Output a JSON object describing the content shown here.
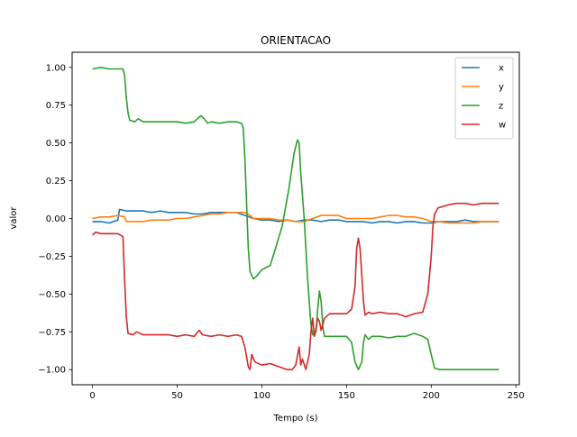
{
  "chart_data": {
    "type": "line",
    "title": "ORIENTACAO",
    "xlabel": "Tempo (s)",
    "ylabel": "valor",
    "xlim": [
      -12,
      252
    ],
    "ylim": [
      -1.1,
      1.1
    ],
    "xticks": [
      0,
      50,
      100,
      150,
      200,
      250
    ],
    "yticks": [
      -1.0,
      -0.75,
      -0.5,
      -0.25,
      0.0,
      0.25,
      0.5,
      0.75,
      1.0
    ],
    "xtick_labels": [
      "0",
      "50",
      "100",
      "150",
      "200",
      "250"
    ],
    "ytick_labels": [
      "−1.00",
      "−0.75",
      "−0.50",
      "−0.25",
      "0.00",
      "0.25",
      "0.50",
      "0.75",
      "1.00"
    ],
    "grid": false,
    "legend_position": "top-right",
    "series": [
      {
        "name": "x",
        "color": "#1f77b4",
        "points": [
          [
            0,
            -0.02
          ],
          [
            5,
            -0.02
          ],
          [
            10,
            -0.03
          ],
          [
            15,
            -0.01
          ],
          [
            16,
            0.06
          ],
          [
            20,
            0.05
          ],
          [
            25,
            0.05
          ],
          [
            30,
            0.05
          ],
          [
            35,
            0.04
          ],
          [
            40,
            0.05
          ],
          [
            45,
            0.04
          ],
          [
            50,
            0.04
          ],
          [
            55,
            0.04
          ],
          [
            60,
            0.03
          ],
          [
            65,
            0.03
          ],
          [
            70,
            0.04
          ],
          [
            75,
            0.04
          ],
          [
            80,
            0.04
          ],
          [
            85,
            0.04
          ],
          [
            90,
            0.02
          ],
          [
            95,
            0.0
          ],
          [
            100,
            -0.01
          ],
          [
            105,
            -0.01
          ],
          [
            110,
            -0.02
          ],
          [
            115,
            -0.01
          ],
          [
            120,
            -0.02
          ],
          [
            125,
            -0.01
          ],
          [
            130,
            -0.01
          ],
          [
            135,
            -0.02
          ],
          [
            140,
            -0.01
          ],
          [
            145,
            -0.01
          ],
          [
            150,
            -0.02
          ],
          [
            155,
            -0.02
          ],
          [
            160,
            -0.02
          ],
          [
            165,
            -0.03
          ],
          [
            170,
            -0.02
          ],
          [
            175,
            -0.02
          ],
          [
            180,
            -0.03
          ],
          [
            185,
            -0.02
          ],
          [
            190,
            -0.02
          ],
          [
            195,
            -0.03
          ],
          [
            200,
            -0.03
          ],
          [
            205,
            -0.02
          ],
          [
            210,
            -0.02
          ],
          [
            215,
            -0.02
          ],
          [
            220,
            -0.01
          ],
          [
            225,
            -0.02
          ],
          [
            230,
            -0.02
          ],
          [
            235,
            -0.02
          ],
          [
            240,
            -0.02
          ]
        ]
      },
      {
        "name": "y",
        "color": "#ff7f0e",
        "points": [
          [
            0,
            0.0
          ],
          [
            5,
            0.01
          ],
          [
            10,
            0.01
          ],
          [
            15,
            0.02
          ],
          [
            19,
            0.01
          ],
          [
            20,
            -0.02
          ],
          [
            25,
            -0.02
          ],
          [
            30,
            -0.02
          ],
          [
            35,
            -0.01
          ],
          [
            40,
            -0.01
          ],
          [
            45,
            -0.01
          ],
          [
            50,
            0.0
          ],
          [
            55,
            0.0
          ],
          [
            60,
            0.01
          ],
          [
            65,
            0.02
          ],
          [
            70,
            0.03
          ],
          [
            75,
            0.03
          ],
          [
            80,
            0.04
          ],
          [
            85,
            0.04
          ],
          [
            90,
            0.04
          ],
          [
            93,
            0.02
          ],
          [
            95,
            0.0
          ],
          [
            100,
            0.0
          ],
          [
            105,
            0.0
          ],
          [
            110,
            -0.01
          ],
          [
            115,
            -0.01
          ],
          [
            120,
            -0.02
          ],
          [
            125,
            -0.02
          ],
          [
            130,
            0.0
          ],
          [
            135,
            0.02
          ],
          [
            140,
            0.02
          ],
          [
            145,
            0.02
          ],
          [
            150,
            0.0
          ],
          [
            155,
            0.0
          ],
          [
            160,
            0.0
          ],
          [
            165,
            0.0
          ],
          [
            170,
            0.01
          ],
          [
            175,
            0.02
          ],
          [
            180,
            0.02
          ],
          [
            185,
            0.01
          ],
          [
            190,
            0.01
          ],
          [
            195,
            0.0
          ],
          [
            200,
            -0.02
          ],
          [
            205,
            -0.02
          ],
          [
            210,
            -0.03
          ],
          [
            215,
            -0.03
          ],
          [
            220,
            -0.03
          ],
          [
            225,
            -0.03
          ],
          [
            230,
            -0.02
          ],
          [
            235,
            -0.02
          ],
          [
            240,
            -0.02
          ]
        ]
      },
      {
        "name": "z",
        "color": "#2ca02c",
        "points": [
          [
            0,
            0.99
          ],
          [
            5,
            1.0
          ],
          [
            10,
            0.99
          ],
          [
            15,
            0.99
          ],
          [
            18,
            0.99
          ],
          [
            19,
            0.95
          ],
          [
            20,
            0.8
          ],
          [
            21,
            0.7
          ],
          [
            22,
            0.65
          ],
          [
            25,
            0.64
          ],
          [
            27,
            0.66
          ],
          [
            30,
            0.64
          ],
          [
            35,
            0.64
          ],
          [
            40,
            0.64
          ],
          [
            45,
            0.64
          ],
          [
            50,
            0.64
          ],
          [
            55,
            0.63
          ],
          [
            60,
            0.64
          ],
          [
            64,
            0.68
          ],
          [
            66,
            0.66
          ],
          [
            68,
            0.63
          ],
          [
            70,
            0.64
          ],
          [
            75,
            0.63
          ],
          [
            80,
            0.64
          ],
          [
            85,
            0.64
          ],
          [
            88,
            0.63
          ],
          [
            89,
            0.6
          ],
          [
            90,
            0.4
          ],
          [
            91,
            0.1
          ],
          [
            92,
            -0.2
          ],
          [
            93,
            -0.35
          ],
          [
            95,
            -0.4
          ],
          [
            97,
            -0.38
          ],
          [
            100,
            -0.34
          ],
          [
            105,
            -0.31
          ],
          [
            108,
            -0.2
          ],
          [
            112,
            -0.05
          ],
          [
            116,
            0.2
          ],
          [
            119,
            0.43
          ],
          [
            121,
            0.52
          ],
          [
            122,
            0.5
          ],
          [
            123,
            0.3
          ],
          [
            125,
            0.0
          ],
          [
            127,
            -0.4
          ],
          [
            129,
            -0.7
          ],
          [
            130,
            -0.77
          ],
          [
            132,
            -0.75
          ],
          [
            133,
            -0.6
          ],
          [
            134,
            -0.48
          ],
          [
            135,
            -0.55
          ],
          [
            136,
            -0.72
          ],
          [
            137,
            -0.78
          ],
          [
            140,
            -0.78
          ],
          [
            145,
            -0.78
          ],
          [
            150,
            -0.78
          ],
          [
            153,
            -0.82
          ],
          [
            155,
            -0.95
          ],
          [
            157,
            -1.0
          ],
          [
            159,
            -0.95
          ],
          [
            160,
            -0.82
          ],
          [
            161,
            -0.77
          ],
          [
            163,
            -0.8
          ],
          [
            165,
            -0.78
          ],
          [
            170,
            -0.78
          ],
          [
            175,
            -0.79
          ],
          [
            180,
            -0.78
          ],
          [
            185,
            -0.78
          ],
          [
            190,
            -0.76
          ],
          [
            195,
            -0.78
          ],
          [
            198,
            -0.8
          ],
          [
            200,
            -0.9
          ],
          [
            202,
            -0.99
          ],
          [
            205,
            -1.0
          ],
          [
            210,
            -1.0
          ],
          [
            220,
            -1.0
          ],
          [
            230,
            -1.0
          ],
          [
            240,
            -1.0
          ]
        ]
      },
      {
        "name": "w",
        "color": "#d62728",
        "points": [
          [
            0,
            -0.11
          ],
          [
            2,
            -0.09
          ],
          [
            5,
            -0.1
          ],
          [
            10,
            -0.1
          ],
          [
            15,
            -0.1
          ],
          [
            18,
            -0.12
          ],
          [
            19,
            -0.4
          ],
          [
            20,
            -0.65
          ],
          [
            21,
            -0.76
          ],
          [
            24,
            -0.77
          ],
          [
            26,
            -0.75
          ],
          [
            30,
            -0.77
          ],
          [
            35,
            -0.77
          ],
          [
            40,
            -0.77
          ],
          [
            45,
            -0.77
          ],
          [
            50,
            -0.78
          ],
          [
            55,
            -0.77
          ],
          [
            60,
            -0.78
          ],
          [
            63,
            -0.74
          ],
          [
            65,
            -0.77
          ],
          [
            70,
            -0.78
          ],
          [
            75,
            -0.77
          ],
          [
            80,
            -0.78
          ],
          [
            85,
            -0.77
          ],
          [
            88,
            -0.78
          ],
          [
            90,
            -0.85
          ],
          [
            92,
            -0.98
          ],
          [
            93,
            -1.0
          ],
          [
            94,
            -0.9
          ],
          [
            96,
            -0.95
          ],
          [
            100,
            -0.97
          ],
          [
            105,
            -0.96
          ],
          [
            110,
            -0.98
          ],
          [
            115,
            -1.0
          ],
          [
            118,
            -1.0
          ],
          [
            120,
            -0.97
          ],
          [
            122,
            -0.85
          ],
          [
            123,
            -0.97
          ],
          [
            124,
            -0.93
          ],
          [
            126,
            -1.0
          ],
          [
            128,
            -0.9
          ],
          [
            129,
            -0.75
          ],
          [
            130,
            -0.66
          ],
          [
            131,
            -0.78
          ],
          [
            132,
            -0.73
          ],
          [
            133,
            -0.66
          ],
          [
            134,
            -0.68
          ],
          [
            135,
            -0.74
          ],
          [
            137,
            -0.66
          ],
          [
            140,
            -0.63
          ],
          [
            145,
            -0.63
          ],
          [
            150,
            -0.63
          ],
          [
            153,
            -0.6
          ],
          [
            155,
            -0.45
          ],
          [
            156,
            -0.2
          ],
          [
            157,
            -0.13
          ],
          [
            158,
            -0.2
          ],
          [
            160,
            -0.55
          ],
          [
            161,
            -0.64
          ],
          [
            163,
            -0.62
          ],
          [
            165,
            -0.63
          ],
          [
            170,
            -0.62
          ],
          [
            175,
            -0.63
          ],
          [
            180,
            -0.63
          ],
          [
            185,
            -0.65
          ],
          [
            190,
            -0.63
          ],
          [
            195,
            -0.62
          ],
          [
            198,
            -0.5
          ],
          [
            200,
            -0.25
          ],
          [
            201,
            -0.05
          ],
          [
            202,
            0.03
          ],
          [
            204,
            0.07
          ],
          [
            207,
            0.08
          ],
          [
            210,
            0.09
          ],
          [
            215,
            0.1
          ],
          [
            220,
            0.1
          ],
          [
            225,
            0.09
          ],
          [
            230,
            0.1
          ],
          [
            235,
            0.1
          ],
          [
            240,
            0.1
          ]
        ]
      }
    ]
  }
}
